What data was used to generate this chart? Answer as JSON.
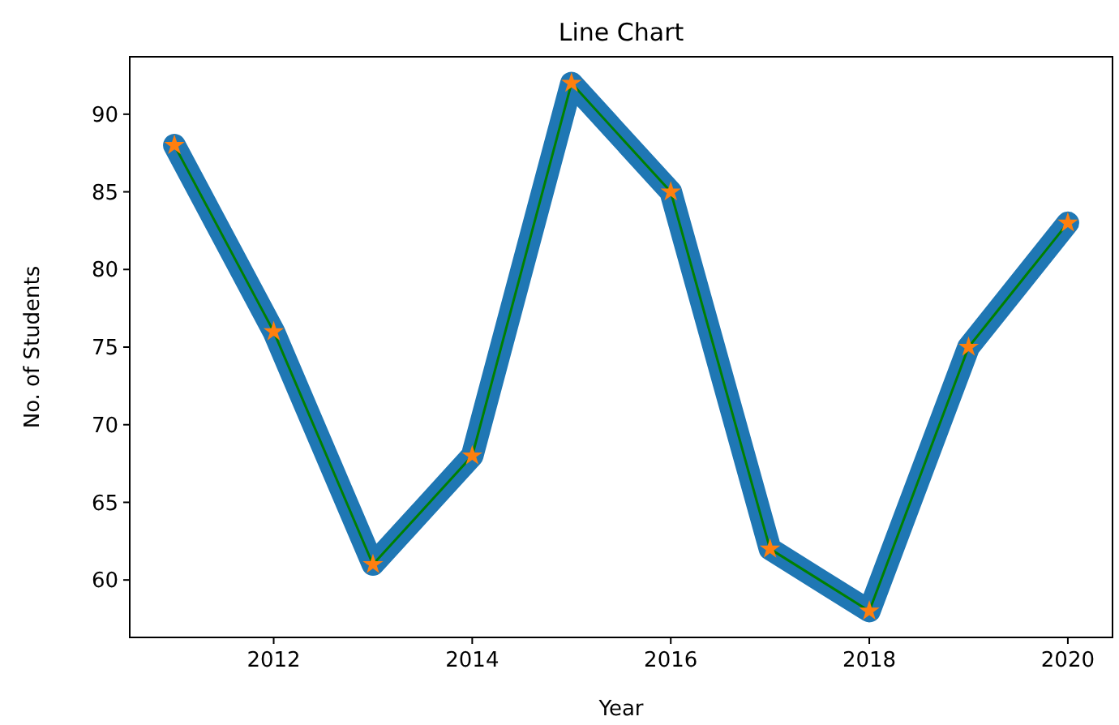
{
  "chart_data": {
    "type": "line",
    "title": "Line Chart",
    "xlabel": "Year",
    "ylabel": "No. of Students",
    "x": [
      2011,
      2012,
      2013,
      2014,
      2015,
      2016,
      2017,
      2018,
      2019,
      2020
    ],
    "series": [
      {
        "color": "#1f77b4",
        "values": [
          88,
          76,
          61,
          68,
          92,
          85,
          62,
          58,
          75,
          83
        ]
      },
      {
        "color": "#008000",
        "marker": "star",
        "colors": [
          "#ff7f0e",
          "#ff7f0e",
          "#ff7f0e",
          "#ff7f0e",
          "#ff7f0e",
          "#ff7f0e",
          "#ff7f0e",
          "#ff7f0e",
          "#ff7f0e",
          "#ff7f0e"
        ],
        "values": [
          88,
          76,
          61,
          68,
          92,
          85,
          62,
          58,
          75,
          83
        ]
      }
    ],
    "xlim": [
      2010.55,
      2020.45
    ],
    "ylim": [
      56.3,
      93.7
    ],
    "xticks": [
      2012,
      2014,
      2016,
      2018,
      2020
    ],
    "yticks": [
      60,
      65,
      70,
      75,
      80,
      85,
      90
    ],
    "line_style": "solid"
  }
}
